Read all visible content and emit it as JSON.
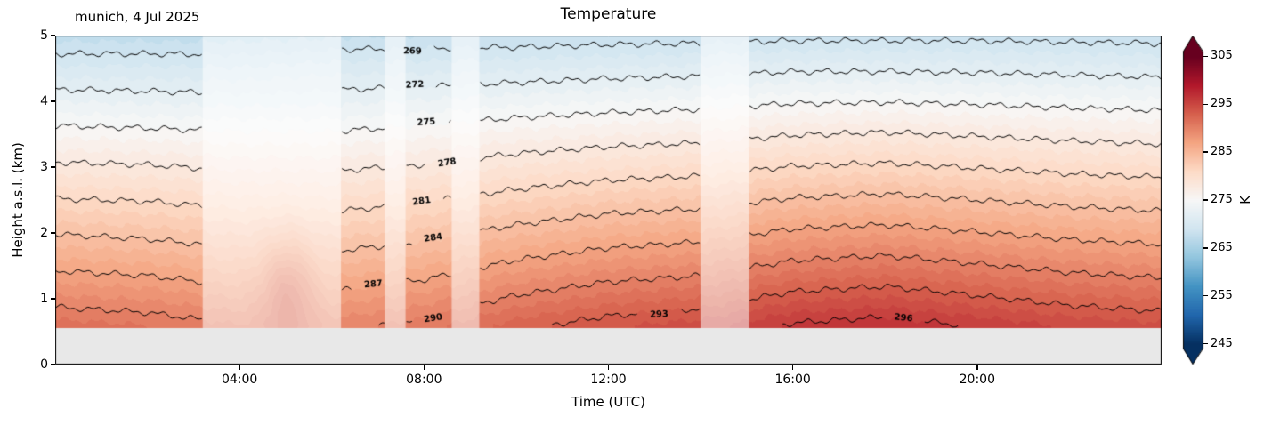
{
  "title": "Temperature",
  "annotation": "munich, 4 Jul 2025",
  "axes": {
    "xlabel": "Time (UTC)",
    "ylabel": "Height a.s.l. (km)",
    "xlim_hours": [
      0,
      24
    ],
    "ylim_km": [
      0,
      5
    ],
    "x_ticks": [
      {
        "hour": 4,
        "label": "04:00"
      },
      {
        "hour": 8,
        "label": "08:00"
      },
      {
        "hour": 12,
        "label": "12:00"
      },
      {
        "hour": 16,
        "label": "16:00"
      },
      {
        "hour": 20,
        "label": "20:00"
      }
    ],
    "y_ticks": [
      {
        "km": 0,
        "label": "0"
      },
      {
        "km": 1,
        "label": "1"
      },
      {
        "km": 2,
        "label": "2"
      },
      {
        "km": 3,
        "label": "3"
      },
      {
        "km": 4,
        "label": "4"
      },
      {
        "km": 5,
        "label": "5"
      }
    ]
  },
  "colorbar": {
    "label": "K",
    "vmin": 245,
    "vmax": 305,
    "extend": "both",
    "colormap": "RdBu_r",
    "ticks": [
      {
        "value": 245,
        "label": "245"
      },
      {
        "value": 255,
        "label": "255"
      },
      {
        "value": 265,
        "label": "265"
      },
      {
        "value": 275,
        "label": "275"
      },
      {
        "value": 285,
        "label": "285"
      },
      {
        "value": 295,
        "label": "295"
      },
      {
        "value": 305,
        "label": "305"
      }
    ],
    "colors": [
      "#053061",
      "#2166ac",
      "#4393c3",
      "#92c5de",
      "#d1e5f0",
      "#f7f7f7",
      "#fddbc7",
      "#f4a582",
      "#d6604d",
      "#b2182b",
      "#67001f"
    ]
  },
  "chart_data": {
    "type": "heatmap",
    "title": "Temperature",
    "site": "munich",
    "date": "4 Jul 2025",
    "units": "K",
    "x_hours": [
      0,
      2,
      4,
      6,
      8,
      10,
      12,
      14,
      16,
      18,
      20,
      22,
      24
    ],
    "heights_km": [
      0.6,
      1.0,
      1.5,
      2.0,
      2.5,
      3.0,
      3.5,
      4.0,
      4.5,
      5.0
    ],
    "temps_K": [
      [
        291.5,
        291.0,
        290.0,
        289.5,
        290.5,
        292.5,
        293.8,
        294.5,
        296.2,
        296.8,
        295.8,
        294.8,
        294.2
      ],
      [
        289.3,
        288.9,
        288.0,
        287.5,
        288.5,
        290.3,
        291.5,
        292.1,
        293.7,
        294.2,
        293.3,
        292.4,
        291.9
      ],
      [
        286.6,
        286.2,
        285.4,
        285.1,
        285.9,
        287.5,
        288.6,
        289.1,
        290.5,
        291.0,
        290.2,
        289.4,
        288.9
      ],
      [
        283.9,
        283.5,
        282.8,
        282.6,
        283.3,
        284.7,
        285.7,
        286.2,
        287.4,
        287.8,
        287.1,
        286.4,
        286.0
      ],
      [
        281.1,
        280.9,
        280.3,
        280.1,
        280.8,
        281.9,
        282.8,
        283.2,
        284.2,
        284.6,
        284.0,
        283.4,
        283.0
      ],
      [
        278.4,
        278.2,
        277.7,
        277.7,
        278.2,
        279.1,
        279.8,
        280.2,
        281.1,
        281.4,
        280.9,
        280.4,
        280.1
      ],
      [
        275.7,
        275.5,
        275.2,
        275.2,
        275.7,
        276.4,
        276.9,
        277.2,
        277.9,
        278.2,
        277.8,
        277.4,
        277.1
      ],
      [
        273.0,
        272.8,
        272.6,
        272.7,
        273.1,
        273.6,
        274.0,
        274.3,
        274.8,
        274.9,
        274.7,
        274.4,
        274.2
      ],
      [
        270.2,
        270.2,
        270.1,
        270.6,
        270.6,
        270.8,
        271.1,
        271.3,
        271.7,
        271.7,
        271.6,
        271.4,
        271.2
      ],
      [
        267.5,
        267.5,
        267.5,
        267.8,
        268.0,
        268.0,
        268.2,
        268.3,
        268.5,
        268.5,
        268.5,
        268.4,
        268.3
      ]
    ],
    "surface_layer_top_km": 0.55,
    "contour_levels": [
      269,
      272,
      275,
      278,
      281,
      284,
      287,
      290,
      293,
      296
    ],
    "contour_label_positions": [
      {
        "level": 269,
        "hour": 7.75
      },
      {
        "level": 272,
        "hour": 7.8
      },
      {
        "level": 275,
        "hour": 8.05
      },
      {
        "level": 278,
        "hour": 8.5
      },
      {
        "level": 281,
        "hour": 7.95
      },
      {
        "level": 284,
        "hour": 8.2
      },
      {
        "level": 287,
        "hour": 6.9
      },
      {
        "level": 290,
        "hour": 8.2
      },
      {
        "level": 293,
        "hour": 13.1
      },
      {
        "level": 296,
        "hour": 18.4
      }
    ],
    "data_gap_intervals_hours": [
      [
        3.2,
        6.2
      ],
      [
        7.15,
        7.6
      ],
      [
        8.6,
        9.2
      ],
      [
        14.0,
        15.05
      ]
    ],
    "warm_plume_anomaly": {
      "center_hour": 5.05,
      "center_km": 1.15,
      "amplitude_K": 4.5,
      "sigma_hour": 0.55,
      "sigma_km": 0.8
    }
  },
  "style": {
    "background": "#ffffff",
    "surface_gray": "#e8e8e8",
    "contour_line_color": "#000000",
    "fade_overlay": "rgba(255,255,255,0.52)"
  }
}
